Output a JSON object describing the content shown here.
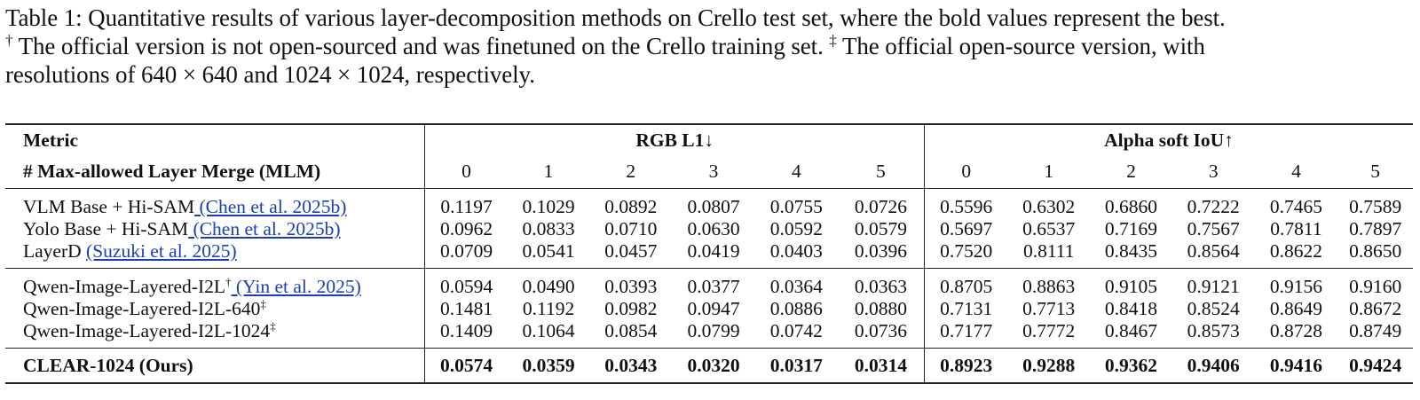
{
  "caption": {
    "line1": "Table 1: Quantitative results of various layer-decomposition methods on Crello test set, where the bold values represent the best.",
    "dagger": "†",
    "line2a": " The official version is not open-sourced and was finetuned on the Crello training set. ",
    "ddagger": "‡",
    "line2b": " The official open-source version, with",
    "line3": "resolutions of 640 × 640 and 1024 × 1024, respectively."
  },
  "table": {
    "header1": {
      "metric": "Metric",
      "group1": "RGB L1↓",
      "group2": "Alpha soft IoU↑"
    },
    "header2": {
      "label": "# Max-allowed Layer Merge (MLM)",
      "cols": [
        "0",
        "1",
        "2",
        "3",
        "4",
        "5",
        "0",
        "1",
        "2",
        "3",
        "4",
        "5"
      ]
    },
    "rows": [
      {
        "name": "VLM Base + Hi-SAM",
        "sup": "",
        "cite": " (Chen et al. 2025b)",
        "values": [
          "0.1197",
          "0.1029",
          "0.0892",
          "0.0807",
          "0.0755",
          "0.0726",
          "0.5596",
          "0.6302",
          "0.6860",
          "0.7222",
          "0.7465",
          "0.7589"
        ]
      },
      {
        "name": "Yolo Base + Hi-SAM",
        "sup": "",
        "cite": " (Chen et al. 2025b)",
        "values": [
          "0.0962",
          "0.0833",
          "0.0710",
          "0.0630",
          "0.0592",
          "0.0579",
          "0.5697",
          "0.6537",
          "0.7169",
          "0.7567",
          "0.7811",
          "0.7897"
        ]
      },
      {
        "name": "LayerD ",
        "sup": "",
        "cite": "(Suzuki et al. 2025)",
        "values": [
          "0.0709",
          "0.0541",
          "0.0457",
          "0.0419",
          "0.0403",
          "0.0396",
          "0.7520",
          "0.8111",
          "0.8435",
          "0.8564",
          "0.8622",
          "0.8650"
        ]
      },
      {
        "name": "Qwen-Image-Layered-I2L",
        "sup": "†",
        "cite": " (Yin et al. 2025)",
        "values": [
          "0.0594",
          "0.0490",
          "0.0393",
          "0.0377",
          "0.0364",
          "0.0363",
          "0.8705",
          "0.8863",
          "0.9105",
          "0.9121",
          "0.9156",
          "0.9160"
        ]
      },
      {
        "name": "Qwen-Image-Layered-I2L-640",
        "sup": "‡",
        "cite": "",
        "values": [
          "0.1481",
          "0.1192",
          "0.0982",
          "0.0947",
          "0.0886",
          "0.0880",
          "0.7131",
          "0.7713",
          "0.8418",
          "0.8524",
          "0.8649",
          "0.8672"
        ]
      },
      {
        "name": "Qwen-Image-Layered-I2L-1024",
        "sup": "‡",
        "cite": "",
        "values": [
          "0.1409",
          "0.1064",
          "0.0854",
          "0.0799",
          "0.0742",
          "0.0736",
          "0.7177",
          "0.7772",
          "0.8467",
          "0.8573",
          "0.8728",
          "0.8749"
        ]
      },
      {
        "name": "CLEAR-1024 (Ours)",
        "sup": "",
        "cite": "",
        "values": [
          "0.0574",
          "0.0359",
          "0.0343",
          "0.0320",
          "0.0317",
          "0.0314",
          "0.8923",
          "0.9288",
          "0.9362",
          "0.9406",
          "0.9416",
          "0.9424"
        ]
      }
    ]
  }
}
